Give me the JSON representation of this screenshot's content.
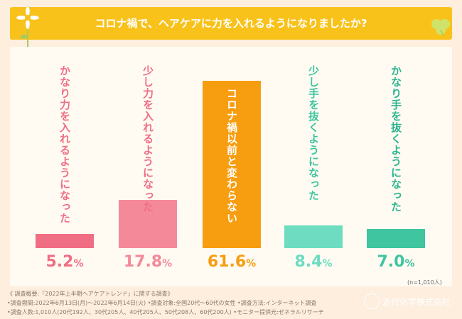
{
  "title": "コロナ禍で、ヘアケアに力を入れるようになりましたか?",
  "chart_data": {
    "type": "bar",
    "categories": [
      "かなり力を入れるようになった",
      "少し力を入れるようになった",
      "コロナ禍以前と変わらない",
      "少し手を抜くようになった",
      "かなり手を抜くようになった"
    ],
    "values": [
      5.2,
      17.8,
      61.6,
      8.4,
      7.0
    ],
    "value_labels": [
      {
        "num": "5.2",
        "unit": "%"
      },
      {
        "num": "17.8",
        "unit": "%"
      },
      {
        "num": "61.6",
        "unit": "%"
      },
      {
        "num": "8.4",
        "unit": "%"
      },
      {
        "num": "7.0",
        "unit": "%"
      }
    ],
    "colors": [
      "#f06e83",
      "#f48999",
      "#f79d10",
      "#6ddcc0",
      "#3fc59f"
    ],
    "label_colors": [
      "#ef6f86",
      "#ef6f86",
      "#ffffff",
      "#3fc59f",
      "#2fb590"
    ],
    "ylim": [
      0,
      61.6
    ],
    "n_label": "(n=1,010人)"
  },
  "notes": {
    "line1": "《 調査概要:「2022年上半期ヘアケアトレンド」に関する調査》",
    "line2": "•調査期間:2022年6月13日(月)〜2022年6月14日(火)  •調査対象:全国20代〜60代の女性  •調査方法:インターネット調査",
    "line3": "•調査人数:1,010人(20代192人、30代205人、40代205人、50代208人、60代200人)   •モニター提供元:ゼネラルリサーチ"
  },
  "logo": {
    "name": "近代化学株式会社",
    "icon": "company-logo-icon"
  }
}
